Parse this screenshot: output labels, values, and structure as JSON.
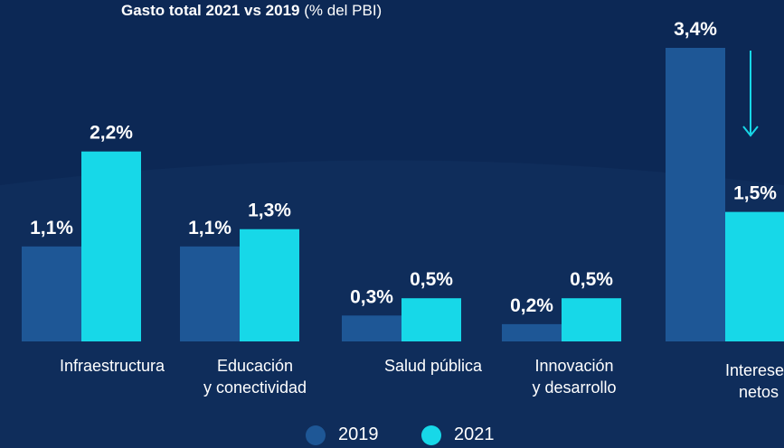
{
  "header": {
    "title_bold": "Gasto total 2021 vs 2019",
    "title_unit": "(% del PBI)"
  },
  "colors": {
    "background": "#0c2855",
    "series_2019": "#1e5796",
    "series_2021": "#17d8e8",
    "arrow": "#17d8e8"
  },
  "chart_data": {
    "type": "bar",
    "title": "Gasto total 2021 vs 2019 (% del PBI)",
    "categories": [
      "Infraestructura",
      "Educación\ny conectividad",
      "Salud pública",
      "Innovación\ny desarrollo",
      "Intereses\nnetos"
    ],
    "series": [
      {
        "name": "2019",
        "values": [
          1.1,
          1.1,
          0.3,
          0.2,
          3.4
        ],
        "labels": [
          "1,1%",
          "1,1%",
          "0,3%",
          "0,2%",
          "3,4%"
        ]
      },
      {
        "name": "2021",
        "values": [
          2.2,
          1.3,
          0.5,
          0.5,
          1.5
        ],
        "labels": [
          "2,2%",
          "1,3%",
          "0,5%",
          "0,5%",
          "1,5%"
        ]
      }
    ],
    "ylim": [
      0,
      3.4
    ],
    "grid": false,
    "legend": "bottom-center",
    "annotations": [
      "downward arrow over Intereses netos"
    ]
  },
  "legend": {
    "items": [
      {
        "label": "2019"
      },
      {
        "label": "2021"
      }
    ]
  }
}
